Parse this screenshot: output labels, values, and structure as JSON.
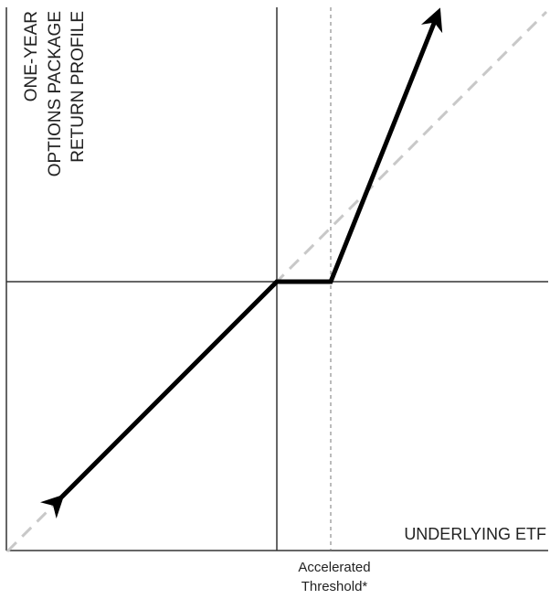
{
  "chart_data": {
    "type": "line",
    "ylabel_lines": [
      "ONE-YEAR",
      "OPTIONS PACKAGE",
      "RETURN PROFILE"
    ],
    "xlabel": "UNDERLYING ETF",
    "threshold_label_lines": [
      "Accelerated",
      "Threshold*"
    ],
    "ticks": "none",
    "grid": false,
    "series": [
      {
        "style": "solid-black-thick-arrows",
        "points": [
          [
            -4,
            -4
          ],
          [
            0,
            0
          ],
          [
            1,
            0
          ],
          [
            3,
            5
          ]
        ]
      },
      {
        "style": "dashed-gray",
        "points": [
          [
            -5,
            -5
          ],
          [
            5,
            5
          ]
        ]
      }
    ],
    "colors": {
      "profile_line": "#000000",
      "reference_line": "#c8c8c8",
      "axes": "#333333",
      "threshold_line": "#777777"
    }
  }
}
